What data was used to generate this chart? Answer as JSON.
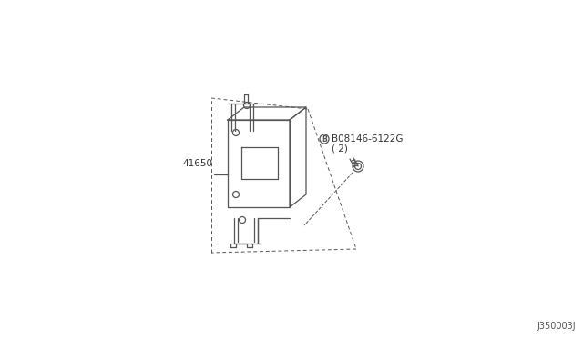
{
  "background_color": "#ffffff",
  "line_color": "#555555",
  "part_label_1": "41650",
  "part_label_2": "B08146-6122G",
  "part_label_2b": "( 2)",
  "diagram_code": "J350003J",
  "fig_width": 6.4,
  "fig_height": 3.72,
  "dpi": 100
}
